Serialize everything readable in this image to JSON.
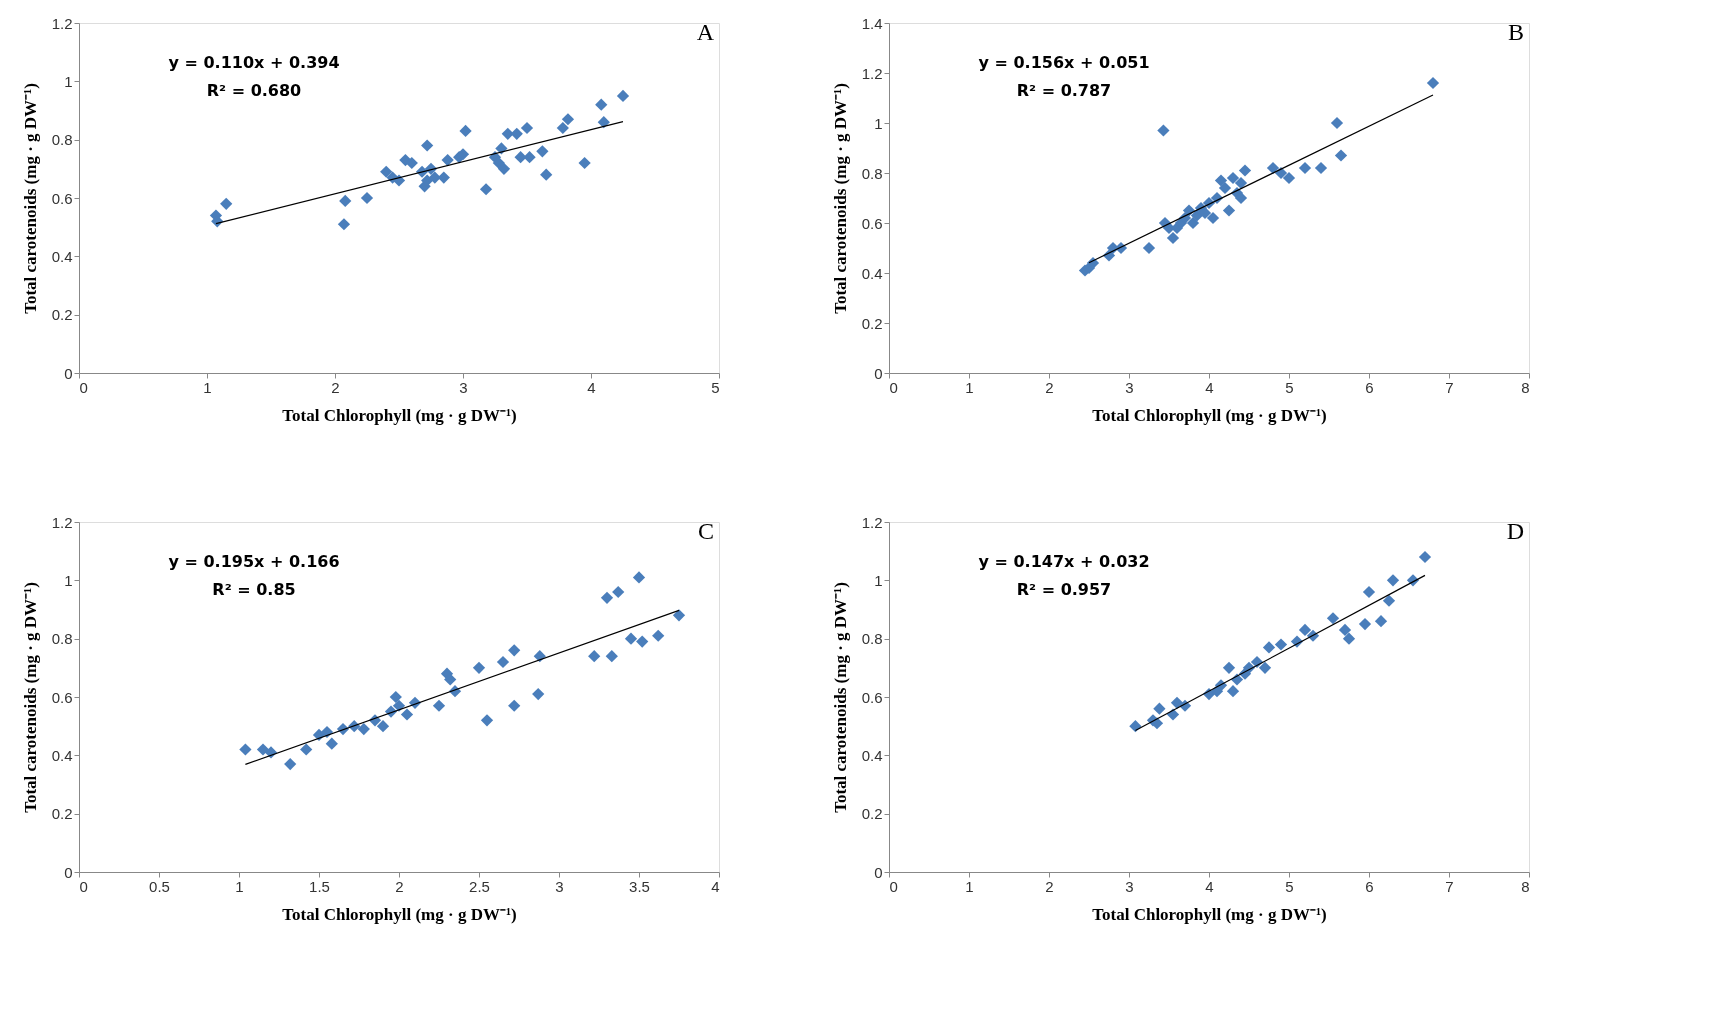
{
  "chart_data": [
    {
      "type": "scatter",
      "xlabel": "Total Chlorophyll (mg · g DW⁻¹)",
      "ylabel": "Total carotenoids (mg · g DW⁻¹)",
      "xlim": [
        0,
        5
      ],
      "xticks": [
        0,
        1,
        2,
        3,
        4,
        5
      ],
      "ylim": [
        0,
        1.2
      ],
      "yticks": [
        0,
        0.2,
        0.4,
        0.6,
        0.8,
        1,
        1.2
      ],
      "grid": false,
      "annotations": [
        "A",
        "y = 0.110x + 0.394",
        "R² = 0.680"
      ],
      "series": [
        {
          "marker": "diamond",
          "color": "#4a7ebb",
          "x": [
            1.07,
            1.08,
            1.15,
            2.07,
            2.08,
            2.25,
            2.4,
            2.45,
            2.5,
            2.55,
            2.6,
            2.68,
            2.7,
            2.72,
            2.72,
            2.75,
            2.78,
            2.85,
            2.88,
            2.97,
            3.0,
            3.02,
            3.18,
            3.25,
            3.28,
            3.3,
            3.32,
            3.35,
            3.42,
            3.45,
            3.5,
            3.52,
            3.62,
            3.65,
            3.78,
            3.82,
            3.95,
            4.08,
            4.1,
            4.25
          ],
          "values": [
            0.54,
            0.52,
            0.58,
            0.51,
            0.59,
            0.6,
            0.69,
            0.67,
            0.66,
            0.73,
            0.72,
            0.69,
            0.64,
            0.78,
            0.66,
            0.7,
            0.67,
            0.67,
            0.73,
            0.74,
            0.75,
            0.83,
            0.63,
            0.74,
            0.72,
            0.77,
            0.7,
            0.82,
            0.82,
            0.74,
            0.84,
            0.74,
            0.76,
            0.68,
            0.84,
            0.87,
            0.72,
            0.92,
            0.86,
            0.95
          ]
        },
        {
          "type": "line",
          "color": "#000000",
          "x": [
            1.07,
            4.25
          ],
          "values": [
            0.512,
            0.862
          ]
        }
      ]
    },
    {
      "type": "scatter",
      "xlabel": "Total Chlorophyll (mg · g DW⁻¹)",
      "ylabel": "Total carotenoids (mg · g DW⁻¹)",
      "xlim": [
        0,
        8
      ],
      "xticks": [
        0,
        1,
        2,
        3,
        4,
        5,
        6,
        7,
        8
      ],
      "ylim": [
        0,
        1.4
      ],
      "yticks": [
        0,
        0.2,
        0.4,
        0.6,
        0.8,
        1,
        1.2,
        1.4
      ],
      "grid": false,
      "annotations": [
        "B",
        "y = 0.156x + 0.051",
        "R² = 0.787"
      ],
      "series": [
        {
          "marker": "diamond",
          "color": "#4a7ebb",
          "x": [
            2.45,
            2.5,
            2.55,
            2.75,
            2.8,
            2.9,
            3.25,
            3.43,
            3.45,
            3.5,
            3.55,
            3.6,
            3.65,
            3.7,
            3.75,
            3.8,
            3.85,
            3.9,
            3.95,
            4.0,
            4.05,
            4.1,
            4.15,
            4.2,
            4.25,
            4.3,
            4.35,
            4.4,
            4.4,
            4.45,
            4.8,
            4.9,
            5.0,
            5.2,
            5.4,
            5.6,
            5.65,
            6.8
          ],
          "values": [
            0.41,
            0.42,
            0.44,
            0.47,
            0.5,
            0.5,
            0.5,
            0.97,
            0.6,
            0.58,
            0.54,
            0.58,
            0.6,
            0.62,
            0.65,
            0.6,
            0.63,
            0.66,
            0.64,
            0.68,
            0.62,
            0.7,
            0.77,
            0.74,
            0.65,
            0.78,
            0.72,
            0.76,
            0.7,
            0.81,
            0.82,
            0.8,
            0.78,
            0.82,
            0.82,
            1.0,
            0.87,
            1.16
          ]
        },
        {
          "type": "line",
          "color": "#000000",
          "x": [
            2.5,
            6.8
          ],
          "values": [
            0.441,
            1.112
          ]
        }
      ]
    },
    {
      "type": "scatter",
      "xlabel": "Total Chlorophyll (mg · g DW⁻¹)",
      "ylabel": "Total carotenoids (mg · g DW⁻¹)",
      "xlim": [
        0,
        4
      ],
      "xticks": [
        0,
        0.5,
        1,
        1.5,
        2,
        2.5,
        3,
        3.5,
        4
      ],
      "ylim": [
        0,
        1.2
      ],
      "yticks": [
        0,
        0.2,
        0.4,
        0.6,
        0.8,
        1,
        1.2
      ],
      "grid": false,
      "annotations": [
        "C",
        "y = 0.195x + 0.166",
        "R² = 0.85"
      ],
      "series": [
        {
          "marker": "diamond",
          "color": "#4a7ebb",
          "x": [
            1.04,
            1.15,
            1.2,
            1.32,
            1.42,
            1.5,
            1.55,
            1.58,
            1.65,
            1.72,
            1.78,
            1.85,
            1.9,
            1.95,
            1.98,
            2.0,
            2.05,
            2.1,
            2.25,
            2.3,
            2.32,
            2.35,
            2.5,
            2.55,
            2.65,
            2.72,
            2.72,
            2.87,
            2.88,
            3.22,
            3.3,
            3.33,
            3.37,
            3.45,
            3.5,
            3.52,
            3.62,
            3.75
          ],
          "values": [
            0.42,
            0.42,
            0.41,
            0.37,
            0.42,
            0.47,
            0.48,
            0.44,
            0.49,
            0.5,
            0.49,
            0.52,
            0.5,
            0.55,
            0.6,
            0.57,
            0.54,
            0.58,
            0.57,
            0.68,
            0.66,
            0.62,
            0.7,
            0.52,
            0.72,
            0.76,
            0.57,
            0.61,
            0.74,
            0.74,
            0.94,
            0.74,
            0.96,
            0.8,
            1.01,
            0.79,
            0.81,
            0.88
          ]
        },
        {
          "type": "line",
          "color": "#000000",
          "x": [
            1.04,
            3.75
          ],
          "values": [
            0.369,
            0.897
          ]
        }
      ]
    },
    {
      "type": "scatter",
      "xlabel": "Total Chlorophyll (mg · g DW⁻¹)",
      "ylabel": "Total carotenoids (mg · g DW⁻¹)",
      "xlim": [
        0,
        8
      ],
      "xticks": [
        0,
        1,
        2,
        3,
        4,
        5,
        6,
        7,
        8
      ],
      "ylim": [
        0,
        1.2
      ],
      "yticks": [
        0,
        0.2,
        0.4,
        0.6,
        0.8,
        1,
        1.2
      ],
      "grid": false,
      "annotations": [
        "D",
        "y = 0.147x + 0.032",
        "R² = 0.957"
      ],
      "series": [
        {
          "marker": "diamond",
          "color": "#4a7ebb",
          "x": [
            3.08,
            3.3,
            3.35,
            3.38,
            3.55,
            3.6,
            3.7,
            4.0,
            4.1,
            4.15,
            4.25,
            4.3,
            4.35,
            4.45,
            4.5,
            4.6,
            4.7,
            4.75,
            4.9,
            5.1,
            5.2,
            5.3,
            5.55,
            5.7,
            5.75,
            5.95,
            6.0,
            6.15,
            6.25,
            6.3,
            6.55,
            6.7
          ],
          "values": [
            0.5,
            0.52,
            0.51,
            0.56,
            0.54,
            0.58,
            0.57,
            0.61,
            0.62,
            0.64,
            0.7,
            0.62,
            0.66,
            0.68,
            0.7,
            0.72,
            0.7,
            0.77,
            0.78,
            0.79,
            0.83,
            0.81,
            0.87,
            0.83,
            0.8,
            0.85,
            0.96,
            0.86,
            0.93,
            1.0,
            1.0,
            1.08
          ]
        },
        {
          "type": "line",
          "color": "#000000",
          "x": [
            3.08,
            6.7
          ],
          "values": [
            0.485,
            1.017
          ]
        }
      ]
    }
  ]
}
